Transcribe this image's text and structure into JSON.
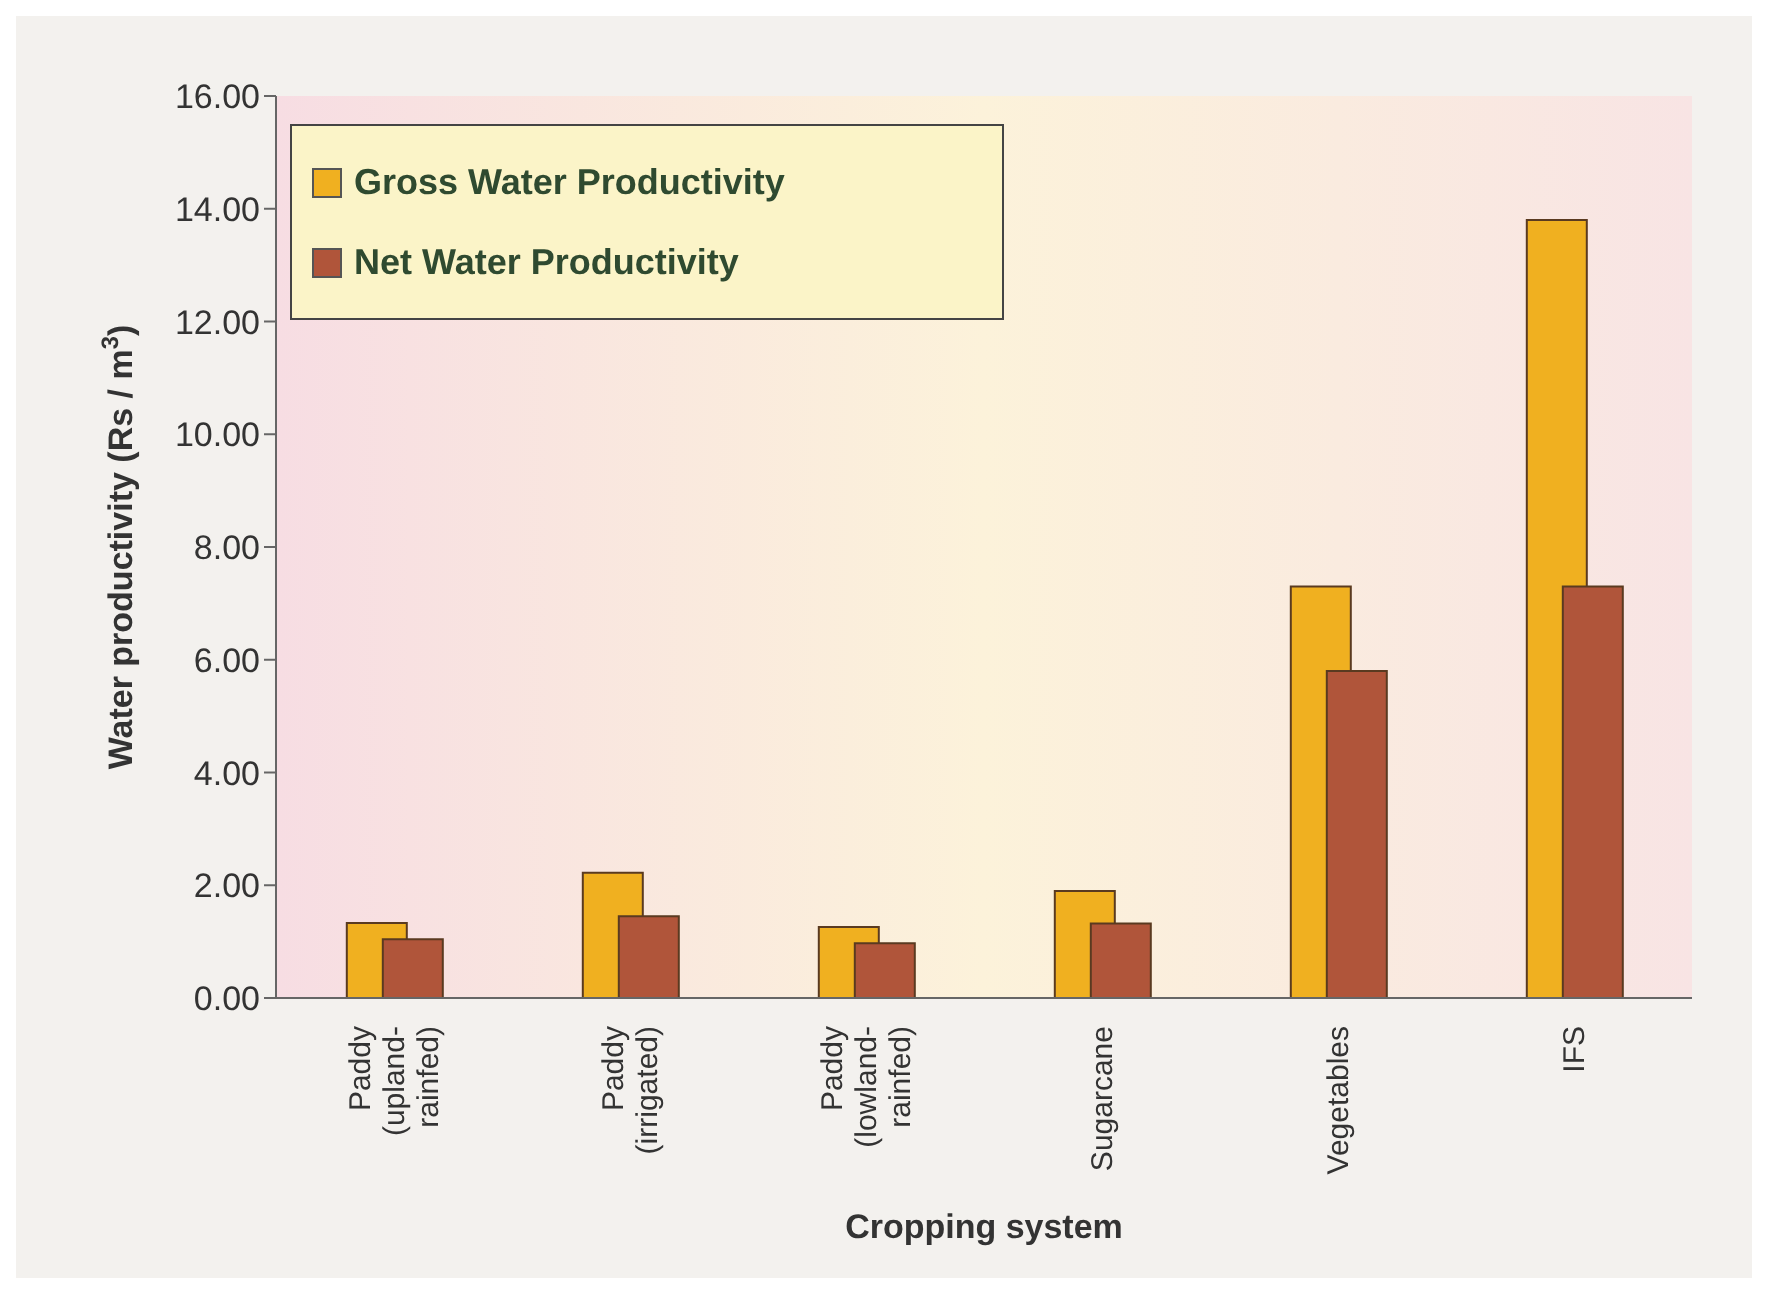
{
  "chart_data": {
    "type": "bar",
    "xlabel": "Cropping system",
    "ylabel": "Water productivity (Rs / m$^{3}$)",
    "categories": [
      "Paddy\n(upland-\nrainfed)",
      "Paddy\n(irrigated)",
      "Paddy\n(lowland-\nrainfed)",
      "Sugarcane",
      "Vegetables",
      "IFS"
    ],
    "series": [
      {
        "name": "Gross Water Productivity",
        "color": "#f0b020",
        "values": [
          1.33,
          2.22,
          1.26,
          1.9,
          7.3,
          13.8
        ]
      },
      {
        "name": "Net Water Productivity",
        "color": "#b0553a",
        "values": [
          1.04,
          1.45,
          0.97,
          1.32,
          5.8,
          7.3
        ]
      }
    ],
    "ylim": [
      0,
      16
    ],
    "yticks": [
      {
        "value": 0,
        "label": "0.00"
      },
      {
        "value": 2,
        "label": "2.00"
      },
      {
        "value": 4,
        "label": "4.00"
      },
      {
        "value": 6,
        "label": "6.00"
      },
      {
        "value": 8,
        "label": "8.00"
      },
      {
        "value": 10,
        "label": "10.00"
      },
      {
        "value": 12,
        "label": "12.00"
      },
      {
        "value": 14,
        "label": "14.00"
      },
      {
        "value": 16,
        "label": "16.00"
      }
    ],
    "grid": false,
    "legend": "top left"
  }
}
